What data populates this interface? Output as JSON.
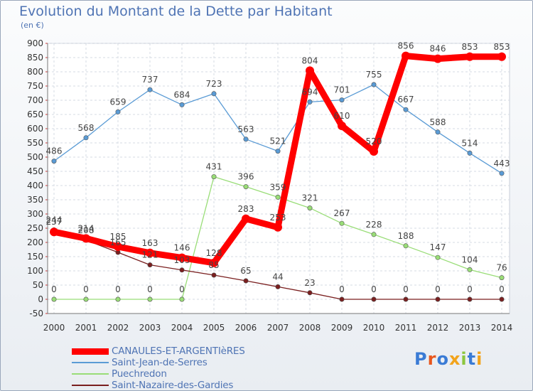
{
  "title": "Evolution du Montant de la Dette par Habitant",
  "unit": "(en €)",
  "logo_text": "Proxiti",
  "chart_data": {
    "type": "line",
    "title": "Evolution du Montant de la Dette par Habitant",
    "ylabel": "(en €)",
    "xlabel": "",
    "ylim": [
      -50,
      900
    ],
    "yticks": [
      -50,
      0,
      50,
      100,
      150,
      200,
      250,
      300,
      350,
      400,
      450,
      500,
      550,
      600,
      650,
      700,
      750,
      800,
      850,
      900
    ],
    "x": [
      "2000",
      "2001",
      "2002",
      "2003",
      "2004",
      "2005",
      "2006",
      "2007",
      "2008",
      "2009",
      "2010",
      "2011",
      "2012",
      "2013",
      "2014"
    ],
    "grid": true,
    "legend_position": "bottom-left",
    "series": [
      {
        "name": "CANAULES-ET-ARGENTIèRES",
        "color": "#ff0000",
        "values": [
          237,
          214,
          185,
          163,
          146,
          128,
          283,
          253,
          804,
          610,
          520,
          856,
          846,
          853,
          853
        ]
      },
      {
        "name": "Saint-Jean-de-Serres",
        "color": "#5a9bd5",
        "values": [
          486,
          568,
          659,
          737,
          684,
          723,
          563,
          521,
          694,
          701,
          755,
          667,
          588,
          514,
          443
        ]
      },
      {
        "name": "Puechredon",
        "color": "#99dd77",
        "values": [
          0,
          0,
          0,
          0,
          0,
          431,
          396,
          359,
          321,
          267,
          228,
          188,
          147,
          104,
          76
        ]
      },
      {
        "name": "Saint-Nazaire-des-Gardies",
        "color": "#7a1f1f",
        "values": [
          244,
          208,
          165,
          121,
          103,
          85,
          65,
          44,
          23,
          0,
          0,
          0,
          0,
          0,
          0
        ]
      }
    ]
  }
}
